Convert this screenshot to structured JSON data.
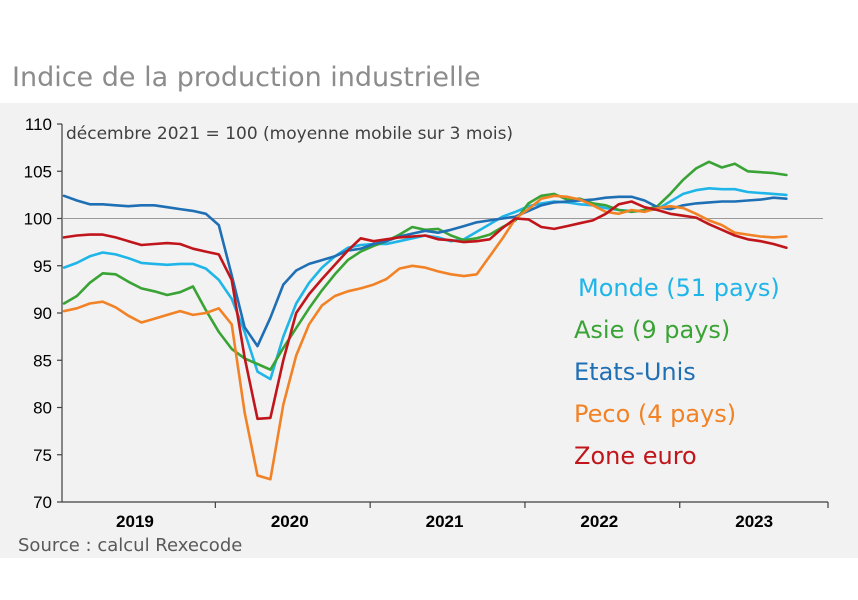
{
  "header": {
    "title": "Indice de la production industrielle"
  },
  "footer": {
    "source": "Source : calcul Rexecode"
  },
  "colors": {
    "monde": "#1fb5e8",
    "asie": "#3aa335",
    "etats_unis": "#1f6fb5",
    "peco": "#f28226",
    "zone_euro": "#c0161b"
  },
  "chart_data": {
    "type": "line",
    "title": "Indice de la production industrielle",
    "subtitle": "décembre 2021 = 100 (moyenne mobile sur 3 mois)",
    "xlabel": "",
    "ylabel": "",
    "ylim": [
      70,
      110
    ],
    "yticks": [
      70,
      75,
      80,
      85,
      90,
      95,
      100,
      105,
      110
    ],
    "reference_line": 100,
    "x_start": "2019-01",
    "x_end": "2023-12",
    "year_labels": [
      "2019",
      "2020",
      "2021",
      "2022",
      "2023"
    ],
    "months": [
      "2019-01",
      "2019-02",
      "2019-03",
      "2019-04",
      "2019-05",
      "2019-06",
      "2019-07",
      "2019-08",
      "2019-09",
      "2019-10",
      "2019-11",
      "2019-12",
      "2020-01",
      "2020-02",
      "2020-03",
      "2020-04",
      "2020-05",
      "2020-06",
      "2020-07",
      "2020-08",
      "2020-09",
      "2020-10",
      "2020-11",
      "2020-12",
      "2021-01",
      "2021-02",
      "2021-03",
      "2021-04",
      "2021-05",
      "2021-06",
      "2021-07",
      "2021-08",
      "2021-09",
      "2021-10",
      "2021-11",
      "2021-12",
      "2022-01",
      "2022-02",
      "2022-03",
      "2022-04",
      "2022-05",
      "2022-06",
      "2022-07",
      "2022-08",
      "2022-09",
      "2022-10",
      "2022-11",
      "2022-12",
      "2023-01",
      "2023-02",
      "2023-03",
      "2023-04",
      "2023-05",
      "2023-06",
      "2023-07",
      "2023-08",
      "2023-09"
    ],
    "series": [
      {
        "name": "Monde (51 pays)",
        "color_key": "monde",
        "values": [
          94.8,
          95.3,
          96.0,
          96.4,
          96.2,
          95.8,
          95.3,
          95.2,
          95.1,
          95.2,
          95.2,
          94.7,
          93.5,
          91.5,
          88.0,
          83.8,
          83.0,
          87.5,
          91.0,
          93.2,
          94.8,
          96.0,
          96.9,
          97.2,
          97.3,
          97.3,
          97.6,
          97.9,
          98.2,
          98.0,
          97.6,
          97.8,
          98.6,
          99.4,
          100.2,
          100.7,
          101.3,
          101.6,
          101.8,
          101.7,
          101.5,
          101.4,
          101.1,
          100.9,
          100.8,
          100.8,
          101.0,
          101.8,
          102.6,
          103.0,
          103.2,
          103.1,
          103.1,
          102.8,
          102.7,
          102.6,
          102.5
        ]
      },
      {
        "name": "Asie (9 pays)",
        "color_key": "asie",
        "values": [
          91.0,
          91.8,
          93.2,
          94.2,
          94.1,
          93.3,
          92.6,
          92.3,
          91.9,
          92.2,
          92.8,
          90.3,
          88.0,
          86.2,
          85.2,
          84.6,
          84.0,
          86.3,
          88.4,
          90.5,
          92.4,
          94.1,
          95.6,
          96.5,
          97.1,
          97.6,
          98.3,
          99.1,
          98.8,
          98.9,
          98.2,
          97.7,
          97.9,
          98.3,
          99.1,
          99.8,
          101.6,
          102.4,
          102.6,
          102.0,
          102.1,
          101.6,
          101.4,
          100.9,
          100.7,
          100.9,
          101.3,
          102.6,
          104.1,
          105.3,
          106.0,
          105.4,
          105.8,
          105.0,
          104.9,
          104.8,
          104.6
        ]
      },
      {
        "name": "Etats-Unis",
        "color_key": "etats_unis",
        "values": [
          102.4,
          101.9,
          101.5,
          101.5,
          101.4,
          101.3,
          101.4,
          101.4,
          101.2,
          101.0,
          100.8,
          100.5,
          99.3,
          94.0,
          88.5,
          86.5,
          89.5,
          93.0,
          94.5,
          95.2,
          95.6,
          96.0,
          96.6,
          96.8,
          97.3,
          97.6,
          98.1,
          98.4,
          98.7,
          98.5,
          98.8,
          99.2,
          99.6,
          99.8,
          100.0,
          100.2,
          100.8,
          101.4,
          101.7,
          101.8,
          101.9,
          102.0,
          102.2,
          102.3,
          102.3,
          101.9,
          101.2,
          101.0,
          101.4,
          101.6,
          101.7,
          101.8,
          101.8,
          101.9,
          102.0,
          102.2,
          102.1
        ]
      },
      {
        "name": "Peco (4 pays)",
        "color_key": "peco",
        "values": [
          90.2,
          90.5,
          91.0,
          91.2,
          90.6,
          89.7,
          89.0,
          89.4,
          89.8,
          90.2,
          89.8,
          90.0,
          90.5,
          88.8,
          79.5,
          72.8,
          72.4,
          80.3,
          85.5,
          88.8,
          90.8,
          91.8,
          92.3,
          92.6,
          93.0,
          93.6,
          94.7,
          95.0,
          94.8,
          94.4,
          94.1,
          93.9,
          94.1,
          96.0,
          97.9,
          100.0,
          101.0,
          102.1,
          102.4,
          102.3,
          102.0,
          101.4,
          100.7,
          100.5,
          100.9,
          100.7,
          101.1,
          101.3,
          101.1,
          100.5,
          99.8,
          99.3,
          98.5,
          98.3,
          98.1,
          98.0,
          98.1
        ]
      },
      {
        "name": "Zone euro",
        "color_key": "zone_euro",
        "values": [
          98.0,
          98.2,
          98.3,
          98.3,
          98.0,
          97.6,
          97.2,
          97.3,
          97.4,
          97.3,
          96.8,
          96.5,
          96.2,
          93.5,
          85.3,
          78.8,
          78.9,
          85.0,
          90.0,
          92.0,
          93.6,
          95.1,
          96.6,
          97.9,
          97.6,
          97.8,
          98.0,
          98.1,
          98.2,
          97.8,
          97.7,
          97.5,
          97.6,
          97.8,
          99.0,
          100.0,
          99.9,
          99.1,
          98.9,
          99.2,
          99.5,
          99.8,
          100.5,
          101.5,
          101.8,
          101.2,
          100.9,
          100.5,
          100.3,
          100.1,
          99.4,
          98.8,
          98.2,
          97.8,
          97.6,
          97.3,
          96.9
        ]
      }
    ]
  }
}
